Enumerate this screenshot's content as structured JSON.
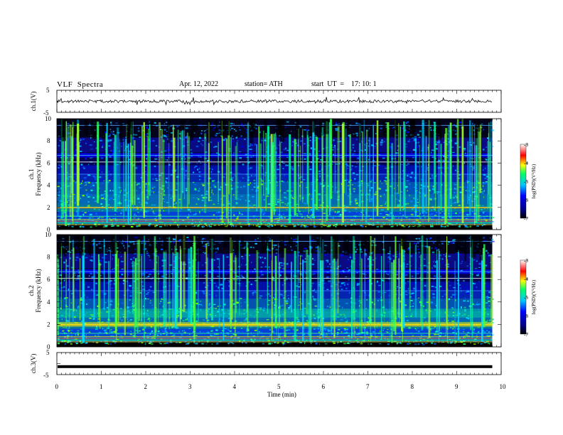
{
  "header": {
    "title": "VLF  Spectra",
    "date": "Apr. 12, 2022",
    "station": "station= ATH",
    "start": "start  UT  =    17: 10: 1"
  },
  "chart_data": [
    {
      "type": "line",
      "panel": "ch1-waveform",
      "ylabel": "ch.1(V)",
      "yticks": [
        "5",
        "-5"
      ],
      "ylim": [
        -5,
        5
      ],
      "xlim": [
        0,
        10
      ],
      "series": [
        {
          "values_range": [
            -0.6,
            0.6
          ],
          "x_end": 9.8
        }
      ]
    },
    {
      "type": "heatmap",
      "panel": "ch1-spectrogram",
      "ylabel": "ch.1",
      "ylabel2": "Frequency  (kHz)",
      "yticks": [
        "0",
        "2",
        "4",
        "6",
        "8",
        "10"
      ],
      "ylim": [
        0,
        10
      ],
      "xlim": [
        0,
        10
      ],
      "x_end": 9.8,
      "colorbar": {
        "label": "log(PSD)(V²/Hz)",
        "ticks": [
          "-3",
          "-4",
          "-5",
          "-6",
          "-7"
        ],
        "range": [
          -7,
          -3
        ]
      }
    },
    {
      "type": "heatmap",
      "panel": "ch2-spectrogram",
      "ylabel": "ch.2",
      "ylabel2": "Frequency  (kHz)",
      "yticks": [
        "0",
        "2",
        "4",
        "6",
        "8",
        "10"
      ],
      "ylim": [
        0,
        10
      ],
      "xlim": [
        0,
        10
      ],
      "x_end": 9.8,
      "colorbar": {
        "label": "log(PSD)(V²/Hz)",
        "ticks": [
          "-3",
          "-4",
          "-5",
          "-6",
          "-7"
        ],
        "range": [
          -7,
          -3
        ]
      }
    },
    {
      "type": "line",
      "panel": "ch3-waveform",
      "ylabel": "ch.3(V)",
      "yticks": [
        "5",
        "-5"
      ],
      "ylim": [
        -5,
        5
      ],
      "xlim": [
        0,
        10
      ],
      "xlabel": "Time  (min)",
      "xticks": [
        "0",
        "1",
        "2",
        "3",
        "4",
        "5",
        "6",
        "7",
        "8",
        "9",
        "10"
      ],
      "series": [
        {
          "value": -1.4,
          "x_end": 9.8
        }
      ]
    }
  ],
  "colors": {
    "background": "#000055",
    "low": "#0000cc",
    "mid": "#00ccff",
    "high": "#33ff66",
    "peak": "#ffff00"
  }
}
